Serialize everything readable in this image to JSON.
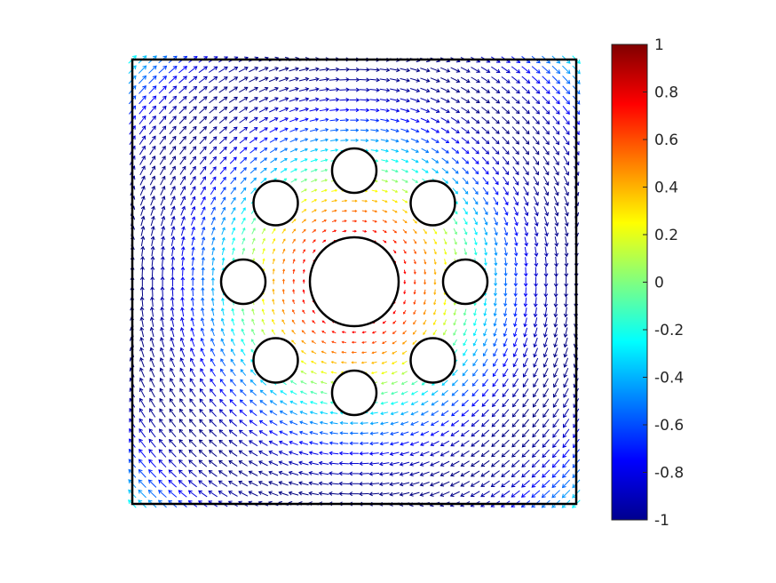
{
  "chart_data": {
    "type": "quiver",
    "title": "",
    "xlabel": "",
    "ylabel": "",
    "axes_visible": false,
    "domain": {
      "x": [
        -1,
        1
      ],
      "y": [
        -1,
        1
      ]
    },
    "boundary": {
      "shape": "square",
      "x": [
        -1,
        1
      ],
      "y": [
        -1,
        1
      ],
      "color": "#000000"
    },
    "holes": [
      {
        "cx": 0.0,
        "cy": 0.0,
        "r": 0.2
      },
      {
        "cx": 0.0,
        "cy": 0.5,
        "r": 0.1
      },
      {
        "cx": 0.354,
        "cy": 0.354,
        "r": 0.1
      },
      {
        "cx": 0.5,
        "cy": 0.0,
        "r": 0.1
      },
      {
        "cx": 0.354,
        "cy": -0.354,
        "r": 0.1
      },
      {
        "cx": 0.0,
        "cy": -0.5,
        "r": 0.1
      },
      {
        "cx": -0.354,
        "cy": -0.354,
        "r": 0.1
      },
      {
        "cx": -0.5,
        "cy": 0.0,
        "r": 0.1
      },
      {
        "cx": -0.354,
        "cy": 0.354,
        "r": 0.1
      }
    ],
    "field": "clockwise rotational flow, color scaled from 1 near center/corners to -1 in mid ring",
    "colormap": "jet",
    "colorbar": {
      "range": [
        -1,
        1
      ],
      "ticks": [
        1,
        0.8,
        0.6,
        0.4,
        0.2,
        0,
        -0.2,
        -0.4,
        -0.6,
        -0.8,
        -1
      ],
      "tick_labels": [
        "1",
        "0.8",
        "0.6",
        "0.4",
        "0.2",
        "0",
        "-0.2",
        "-0.4",
        "-0.6",
        "-0.8",
        "-1"
      ]
    }
  }
}
